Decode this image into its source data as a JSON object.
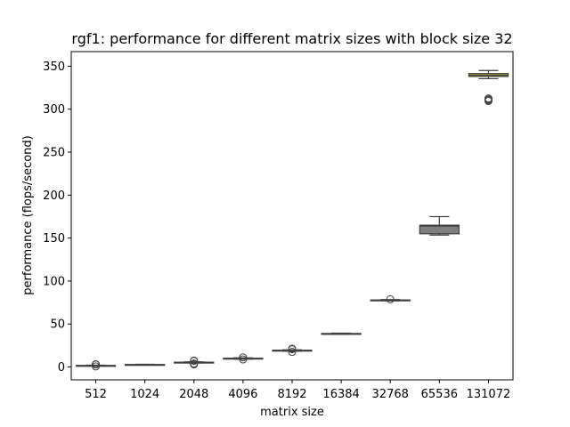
{
  "chart_data": {
    "type": "box",
    "title": "rgf1: performance for different matrix sizes with block size 32",
    "xlabel": "matrix size",
    "ylabel": "performance (flops/second)",
    "ylim": [
      -15,
      367
    ],
    "yticks": [
      0,
      50,
      100,
      150,
      200,
      250,
      300,
      350
    ],
    "categories": [
      "512",
      "1024",
      "2048",
      "4096",
      "8192",
      "16384",
      "32768",
      "65536",
      "131072"
    ],
    "boxes": [
      {
        "category": "512",
        "whisker_low": 1.0,
        "q1": 1.4,
        "median": 1.6,
        "q3": 1.8,
        "whisker_high": 2.1,
        "outliers": [
          0.6,
          2.8,
          3.1
        ],
        "color": "#3274a1"
      },
      {
        "category": "1024",
        "whisker_low": 2.2,
        "q1": 2.5,
        "median": 2.7,
        "q3": 2.9,
        "whisker_high": 3.2,
        "outliers": [],
        "color": "#e1812c"
      },
      {
        "category": "2048",
        "whisker_low": 4.6,
        "q1": 5.0,
        "median": 5.3,
        "q3": 5.6,
        "whisker_high": 6.0,
        "outliers": [
          3.0,
          4.0,
          7.0,
          7.5
        ],
        "color": "#3a923a"
      },
      {
        "category": "4096",
        "whisker_low": 9.2,
        "q1": 9.6,
        "median": 9.9,
        "q3": 10.2,
        "whisker_high": 10.6,
        "outliers": [
          8.8,
          11.2
        ],
        "color": "#c03d3e"
      },
      {
        "category": "8192",
        "whisker_low": 18.4,
        "q1": 18.9,
        "median": 19.2,
        "q3": 19.5,
        "whisker_high": 20.0,
        "outliers": [
          17.6,
          20.6,
          21.2
        ],
        "color": "#9372b2"
      },
      {
        "category": "16384",
        "whisker_low": 38.0,
        "q1": 38.4,
        "median": 38.7,
        "q3": 39.0,
        "whisker_high": 39.4,
        "outliers": [],
        "color": "#845b53"
      },
      {
        "category": "32768",
        "whisker_low": 77.0,
        "q1": 77.4,
        "median": 77.7,
        "q3": 78.0,
        "whisker_high": 78.4,
        "outliers": [
          78.8
        ],
        "color": "#d684bd"
      },
      {
        "category": "65536",
        "whisker_low": 153.5,
        "q1": 155.0,
        "median": 164.0,
        "q3": 165.0,
        "whisker_high": 175.0,
        "outliers": [],
        "color": "#7f7f7f"
      },
      {
        "category": "131072",
        "whisker_low": 335.5,
        "q1": 338.0,
        "median": 339.5,
        "q3": 341.5,
        "whisker_high": 345.0,
        "outliers": [
          309.5,
          310.5,
          311.5,
          312.5
        ],
        "color": "#a9aa35"
      }
    ]
  }
}
